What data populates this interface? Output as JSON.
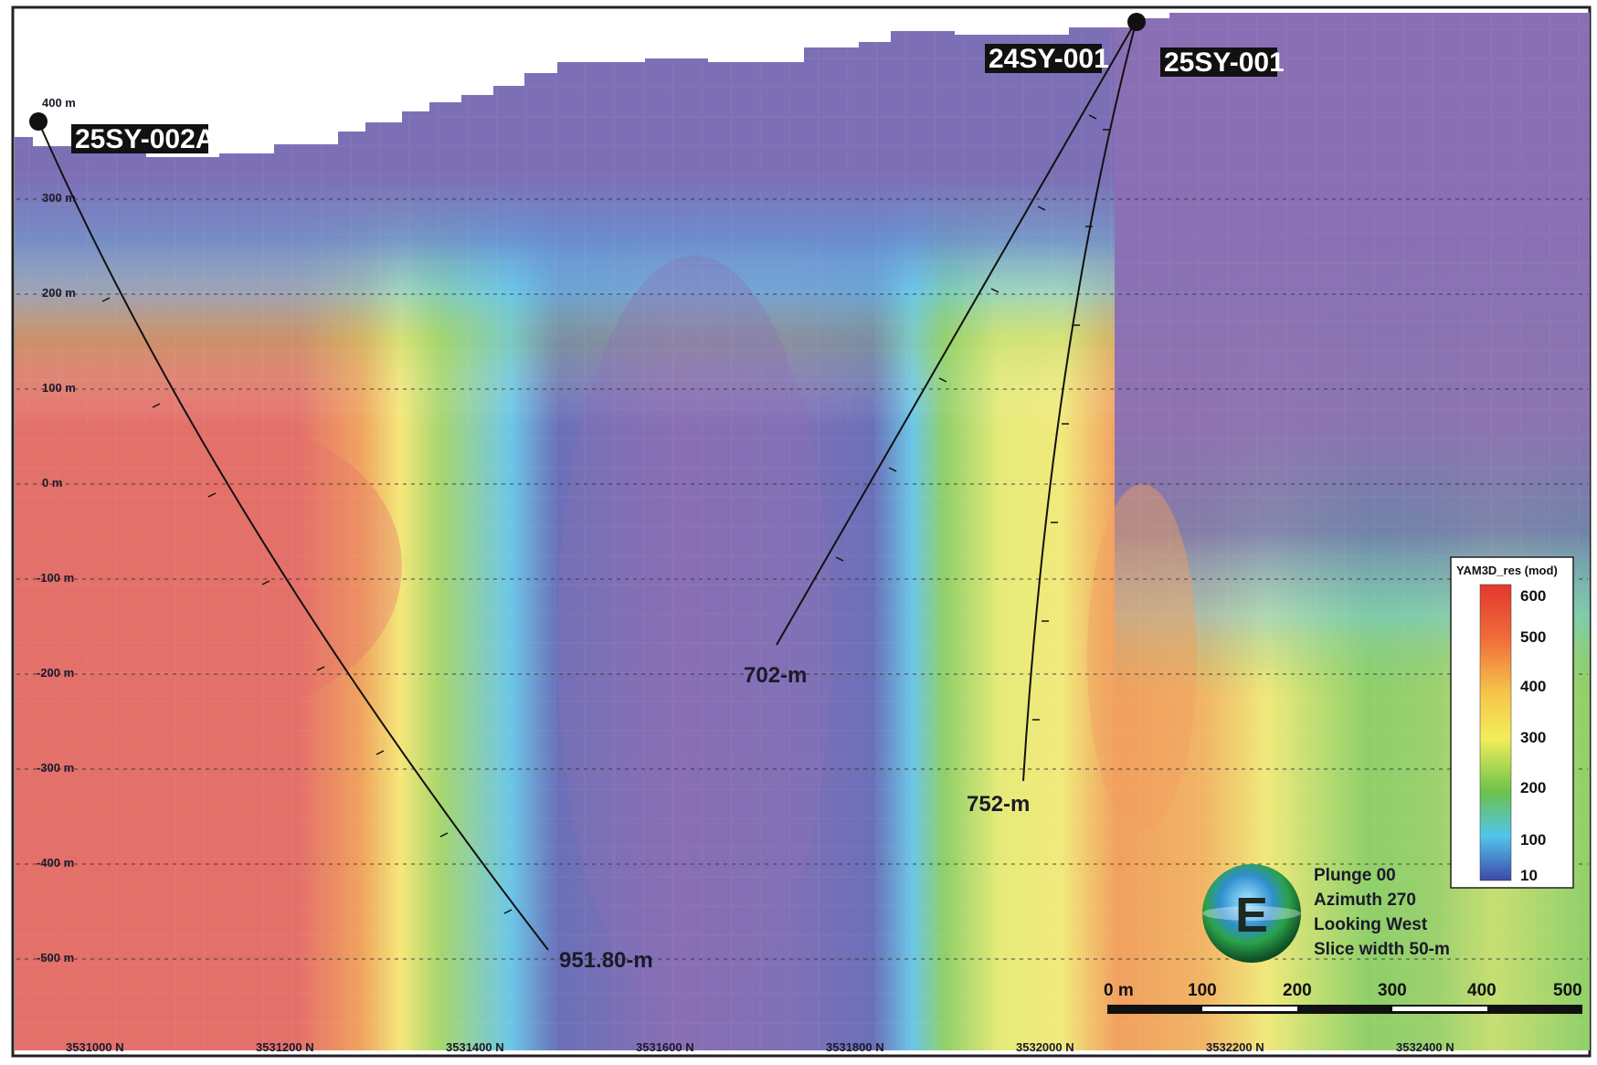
{
  "section": {
    "elevation_labels": [
      "400 m",
      "300 m",
      "200 m",
      "100 m",
      "0 m",
      "-100 m",
      "-200 m",
      "-300 m",
      "-400 m",
      "-500 m"
    ],
    "northing_labels": [
      "3531000 N",
      "3531200 N",
      "3531400 N",
      "3531600 N",
      "3531800 N",
      "3532000 N",
      "3532200 N",
      "3532400 N"
    ]
  },
  "drillholes": [
    {
      "name": "25SY-002A",
      "end_label": "951.80-m"
    },
    {
      "name": "24SY-001",
      "end_label": "702-m"
    },
    {
      "name": "25SY-001",
      "end_label": "752-m"
    }
  ],
  "view_info": {
    "compass_letter": "E",
    "lines": [
      "Plunge 00",
      "Azimuth 270",
      "Looking West",
      "Slice width 50-m"
    ]
  },
  "scale_bar": {
    "labels": [
      "0 m",
      "100",
      "200",
      "300",
      "400",
      "500"
    ]
  },
  "legend": {
    "title": "YAM3D_res (mod)",
    "values": [
      "600",
      "500",
      "400",
      "300",
      "200",
      "100",
      "10"
    ]
  },
  "colors": {
    "purple": "#8a6fb4",
    "dark_blue": "#6a70b8",
    "cyan": "#6cc6e8",
    "green": "#8fcf6a",
    "yellow": "#f2ee7a",
    "orange": "#f1a05f",
    "red": "#e4706a"
  }
}
